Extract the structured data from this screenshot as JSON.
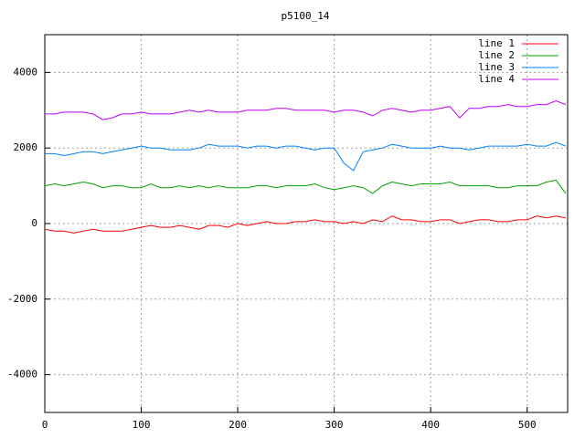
{
  "chart_data": {
    "type": "line",
    "title": "p5100_14",
    "x": [
      0,
      10,
      20,
      30,
      40,
      50,
      60,
      70,
      80,
      90,
      100,
      110,
      120,
      130,
      140,
      150,
      160,
      170,
      180,
      190,
      200,
      210,
      220,
      230,
      240,
      250,
      260,
      270,
      280,
      290,
      300,
      310,
      320,
      330,
      340,
      350,
      360,
      370,
      380,
      390,
      400,
      410,
      420,
      430,
      440,
      450,
      460,
      470,
      480,
      490,
      500,
      510,
      520,
      530,
      540
    ],
    "series": [
      {
        "name": "line 1",
        "color": "#ff0000",
        "values": [
          -150,
          -200,
          -200,
          -250,
          -200,
          -150,
          -200,
          -200,
          -200,
          -150,
          -100,
          -50,
          -100,
          -100,
          -50,
          -100,
          -150,
          -50,
          -50,
          -100,
          0,
          -50,
          0,
          50,
          0,
          0,
          50,
          50,
          100,
          50,
          50,
          0,
          50,
          0,
          100,
          50,
          200,
          100,
          100,
          50,
          50,
          100,
          100,
          0,
          50,
          100,
          100,
          50,
          50,
          100,
          100,
          200,
          150,
          200,
          150
        ]
      },
      {
        "name": "line 2",
        "color": "#00a000",
        "values": [
          1000,
          1050,
          1000,
          1050,
          1100,
          1050,
          950,
          1000,
          1000,
          950,
          950,
          1050,
          950,
          950,
          1000,
          950,
          1000,
          950,
          1000,
          950,
          950,
          950,
          1000,
          1000,
          950,
          1000,
          1000,
          1000,
          1050,
          950,
          900,
          950,
          1000,
          950,
          800,
          1000,
          1100,
          1050,
          1000,
          1050,
          1050,
          1050,
          1100,
          1000,
          1000,
          1000,
          1000,
          950,
          950,
          1000,
          1000,
          1000,
          1100,
          1150,
          800
        ]
      },
      {
        "name": "line 3",
        "color": "#0080ff",
        "values": [
          1850,
          1850,
          1800,
          1850,
          1900,
          1900,
          1850,
          1900,
          1950,
          2000,
          2050,
          2000,
          2000,
          1950,
          1950,
          1950,
          2000,
          2100,
          2050,
          2050,
          2050,
          2000,
          2050,
          2050,
          2000,
          2050,
          2050,
          2000,
          1950,
          2000,
          2000,
          1600,
          1400,
          1900,
          1950,
          2000,
          2100,
          2050,
          2000,
          2000,
          2000,
          2050,
          2000,
          2000,
          1950,
          2000,
          2050,
          2050,
          2050,
          2050,
          2100,
          2050,
          2050,
          2150,
          2050
        ]
      },
      {
        "name": "line 4",
        "color": "#c000ff",
        "values": [
          2900,
          2900,
          2950,
          2950,
          2950,
          2900,
          2750,
          2800,
          2900,
          2900,
          2950,
          2900,
          2900,
          2900,
          2950,
          3000,
          2950,
          3000,
          2950,
          2950,
          2950,
          3000,
          3000,
          3000,
          3050,
          3050,
          3000,
          3000,
          3000,
          3000,
          2950,
          3000,
          3000,
          2950,
          2850,
          3000,
          3050,
          3000,
          2950,
          3000,
          3000,
          3050,
          3100,
          2800,
          3050,
          3050,
          3100,
          3100,
          3150,
          3100,
          3100,
          3150,
          3150,
          3250,
          3150
        ]
      }
    ],
    "xlim": [
      0,
      542
    ],
    "ylim": [
      -5000,
      5000
    ],
    "xticks": [
      0,
      100,
      200,
      300,
      400,
      500
    ],
    "yticks": [
      -4000,
      -2000,
      0,
      2000,
      4000
    ],
    "grid": true,
    "legend": "top-right"
  }
}
